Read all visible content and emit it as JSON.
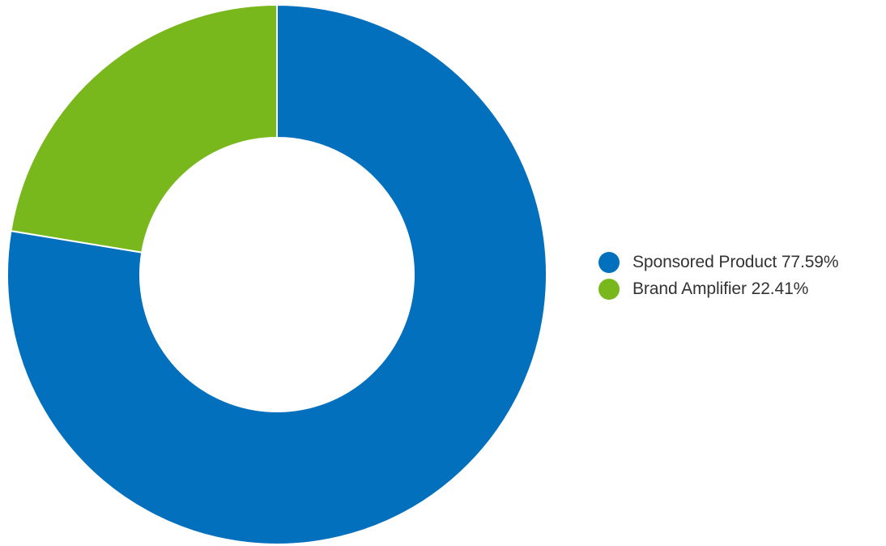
{
  "chart_data": {
    "type": "pie",
    "variant": "donut",
    "legend_position": "right",
    "series": [
      {
        "name": "Sponsored Product",
        "value": 77.59,
        "label": "Sponsored Product 77.59%",
        "color": "#0270bd"
      },
      {
        "name": "Brand Amplifier",
        "value": 22.41,
        "label": "Brand Amplifier 22.41%",
        "color": "#78b81c"
      }
    ]
  }
}
